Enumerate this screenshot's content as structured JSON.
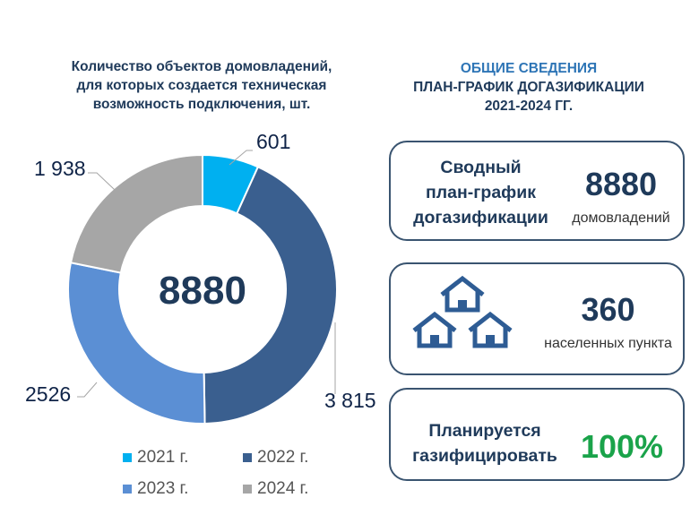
{
  "chart_data": {
    "type": "pie",
    "title": "Количество объектов домовладений, для которых создается техническая возможность подключения, шт.",
    "title_lines": [
      "Количество объектов домовладений,",
      "для которых создается техническая",
      "возможность подключения, шт."
    ],
    "center_total": "8880",
    "categories": [
      "2021 г.",
      "2022 г.",
      "2023 г.",
      "2024 г."
    ],
    "values": [
      601,
      3815,
      2526,
      1938
    ],
    "data_labels": [
      "601",
      "3 815",
      "2526",
      "1 938"
    ],
    "colors": [
      "#00b0f0",
      "#3a5f8f",
      "#5b8fd4",
      "#a6a6a6"
    ],
    "donut": true,
    "legend_position": "bottom"
  },
  "info": {
    "title_lines": [
      "ОБЩИЕ СВЕДЕНИЯ",
      "ПЛАН-ГРАФИК ДОГАЗИФИКАЦИИ",
      "2021-2024 ГГ."
    ],
    "card1": {
      "label_lines": [
        "Сводный",
        "план-график",
        "догазификации"
      ],
      "value": "8880",
      "unit": "домовладений"
    },
    "card2": {
      "icon": "houses-icon",
      "value": "360",
      "unit": "населенных пункта"
    },
    "card3": {
      "label_lines": [
        "Планируется",
        "газифицировать"
      ],
      "value": "100%",
      "value_color": "#1aa34a"
    }
  }
}
